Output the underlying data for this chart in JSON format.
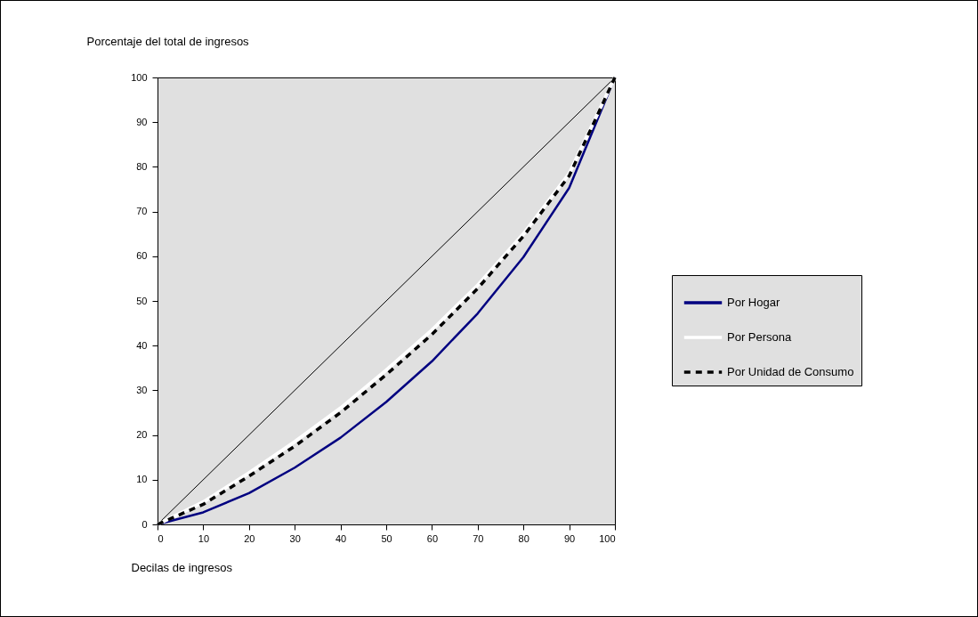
{
  "chart_data": {
    "type": "line",
    "xlabel": "Decilas de ingresos",
    "ylabel": "Porcentaje del total de ingresos",
    "xlim": [
      0,
      100
    ],
    "ylim": [
      0,
      100
    ],
    "xticks": [
      0,
      10,
      20,
      30,
      40,
      50,
      60,
      70,
      80,
      90,
      100
    ],
    "yticks": [
      0,
      10,
      20,
      30,
      40,
      50,
      60,
      70,
      80,
      90,
      100
    ],
    "grid": false,
    "legend": "right",
    "marker": "none",
    "series": [
      {
        "color": "#000000",
        "x": [
          0,
          100
        ],
        "values": [
          0,
          100
        ],
        "line_style": "solid"
      },
      {
        "name": "Por Hogar",
        "color": "#000080",
        "x": [
          0,
          10,
          20,
          30,
          40,
          50,
          60,
          70,
          80,
          90,
          100
        ],
        "values": [
          0,
          2.7,
          7,
          12.7,
          19.4,
          27.4,
          36.5,
          47.2,
          59.8,
          75.3,
          100
        ],
        "line_style": "solid"
      },
      {
        "name": "Por Persona",
        "color": "#ffffff",
        "x": [
          0,
          10,
          20,
          30,
          40,
          50,
          60,
          70,
          80,
          90,
          100
        ],
        "values": [
          0,
          5,
          11.5,
          18.5,
          26,
          34.5,
          43.5,
          53.5,
          65,
          78.5,
          100
        ],
        "line_style": "solid"
      },
      {
        "name": "Por Unidad de Consumo",
        "color": "#000000",
        "x": [
          0,
          10,
          20,
          30,
          40,
          50,
          60,
          70,
          80,
          90,
          100
        ],
        "values": [
          0,
          4.5,
          10.8,
          17.5,
          25,
          33.5,
          42.5,
          52.8,
          64.5,
          78,
          100
        ],
        "line_style": "dashed"
      }
    ]
  }
}
